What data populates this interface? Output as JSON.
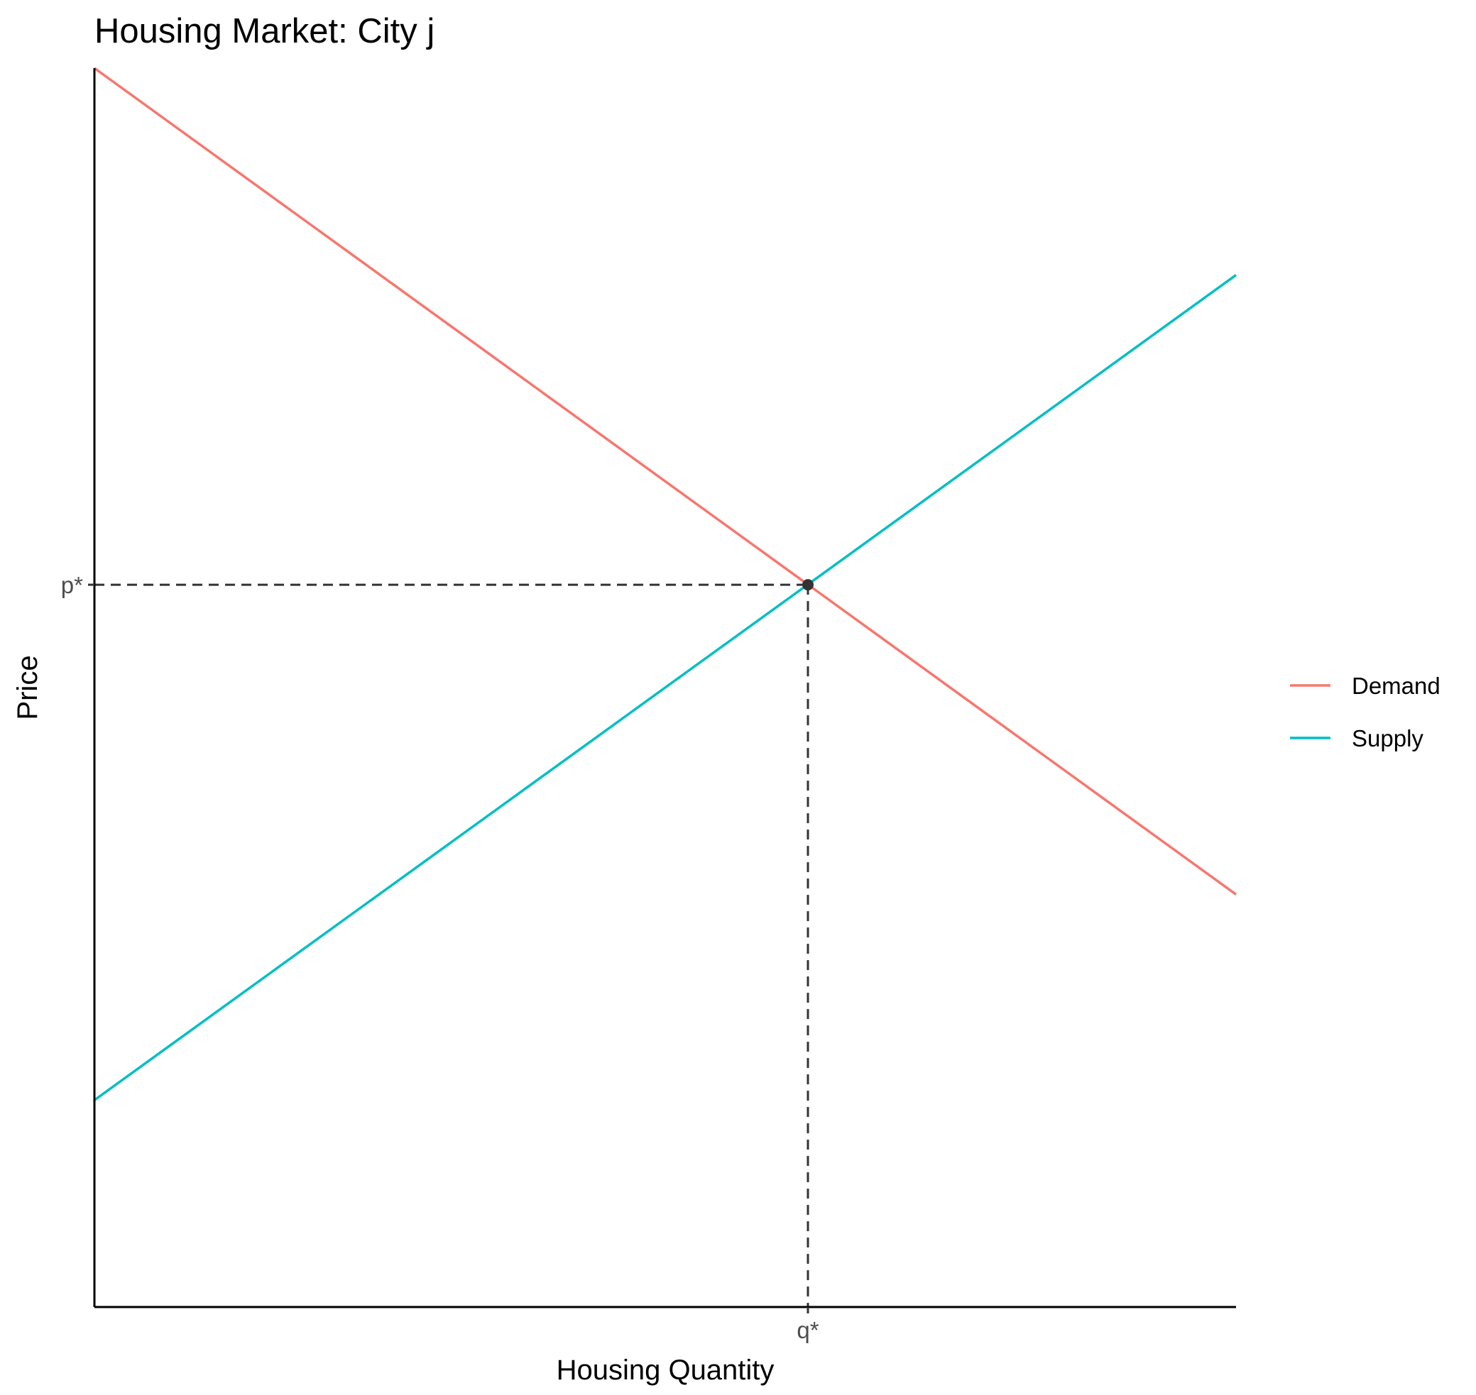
{
  "chart_data": {
    "type": "line",
    "title": "Housing Market: City j",
    "xlabel": "Housing Quantity",
    "ylabel": "Price",
    "xlim": [
      0,
      10
    ],
    "ylim": [
      0,
      10
    ],
    "grid": false,
    "legend_position": "right",
    "x_ticks": [
      {
        "value": 6.25,
        "label": "q*"
      }
    ],
    "y_ticks": [
      {
        "value": 5.83,
        "label": "p*"
      }
    ],
    "series": [
      {
        "name": "Demand",
        "color": "#F8766D",
        "x": [
          0,
          10
        ],
        "y": [
          10,
          3.33
        ]
      },
      {
        "name": "Supply",
        "color": "#00BFC4",
        "x": [
          0,
          10
        ],
        "y": [
          1.67,
          8.33
        ]
      }
    ],
    "equilibrium": {
      "x": 6.25,
      "y": 5.83,
      "color": "#333333"
    }
  }
}
